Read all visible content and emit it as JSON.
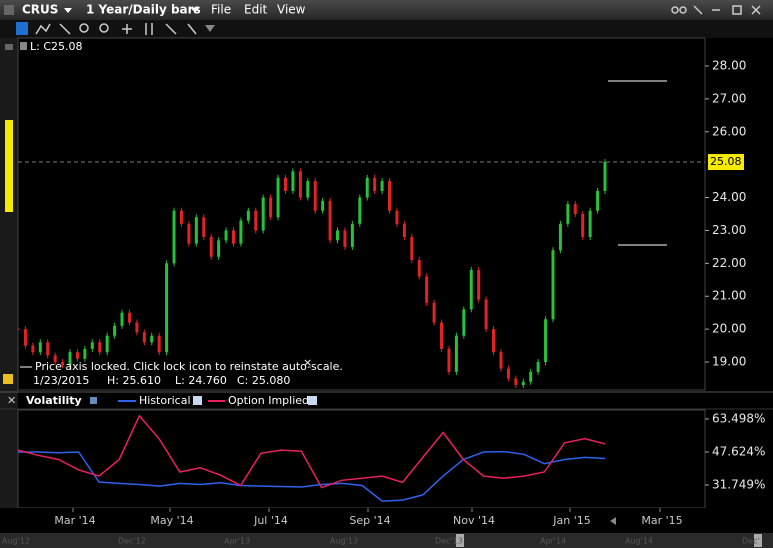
{
  "toolbar": {
    "symbol": "CRUS",
    "period": "1 Year/Daily bars",
    "menus": [
      "File",
      "Edit",
      "View"
    ]
  },
  "chart_data": [
    {
      "type": "candlestick",
      "legend_label": "L: C25.08",
      "values": [
        20.0,
        19.5,
        19.3,
        19.6,
        19.2,
        19.0,
        18.9,
        19.3,
        19.1,
        19.4,
        19.6,
        19.3,
        19.8,
        20.1,
        20.5,
        20.2,
        19.9,
        19.6,
        19.8,
        19.3,
        22.0,
        23.6,
        23.2,
        22.6,
        23.4,
        22.8,
        22.2,
        22.7,
        23.0,
        22.6,
        23.3,
        23.6,
        23.0,
        24.0,
        23.4,
        24.6,
        24.2,
        24.8,
        24.0,
        24.5,
        23.6,
        23.9,
        22.7,
        23.0,
        22.5,
        23.2,
        24.0,
        24.6,
        24.2,
        24.5,
        23.6,
        23.2,
        22.8,
        22.1,
        21.6,
        20.8,
        20.2,
        19.4,
        18.7,
        19.8,
        20.6,
        21.8,
        20.9,
        20.0,
        19.3,
        18.8,
        18.5,
        18.3,
        18.4,
        18.7,
        19.0,
        20.3,
        22.4,
        23.2,
        23.8,
        23.5,
        22.8,
        23.6,
        24.2,
        25.08
      ],
      "color_up": "#27c23a",
      "color_down": "#e02424",
      "ylim": [
        18.15,
        28.85
      ],
      "yticks": [
        {
          "value": 19,
          "label": "19.00"
        },
        {
          "value": 20,
          "label": "20.00"
        },
        {
          "value": 21,
          "label": "21.00"
        },
        {
          "value": 22,
          "label": "22.00"
        },
        {
          "value": 23,
          "label": "23.00"
        },
        {
          "value": 24,
          "label": "24.00"
        },
        {
          "value": 26,
          "label": "26.00"
        },
        {
          "value": 27,
          "label": "27.00"
        },
        {
          "value": 28,
          "label": "28.00"
        }
      ],
      "last_price": 25.08,
      "notice": "Price axis locked. Click lock icon to reinstate auto-scale.",
      "info": [
        "1/23/2015",
        "H: 25.610",
        "L: 24.760",
        "C: 25.080"
      ]
    },
    {
      "type": "line",
      "title": "Volatility",
      "series": [
        {
          "name": "Historical",
          "color": "#2f62ea",
          "values": [
            47.6,
            47.6,
            47.2,
            47.6,
            33.2,
            32.5,
            32.0,
            31.2,
            32.5,
            32.0,
            32.8,
            31.5,
            31.2,
            31.0,
            30.8,
            32.0,
            32.5,
            31.5,
            24.0,
            24.5,
            27.0,
            36.0,
            44.0,
            47.6,
            47.8,
            46.5,
            42.0,
            44.0,
            45.0,
            44.5
          ]
        },
        {
          "name": "Option Implied",
          "color": "#e8205c",
          "values": [
            48.5,
            46.0,
            44.0,
            39.0,
            36.0,
            44.0,
            65.0,
            53.5,
            38.0,
            40.0,
            36.5,
            31.5,
            47.0,
            48.5,
            48.0,
            30.5,
            34.0,
            35.0,
            36.0,
            33.0,
            45.0,
            57.0,
            44.0,
            36.0,
            35.0,
            36.0,
            38.0,
            52.0,
            54.0,
            51.5
          ]
        }
      ],
      "ylim": [
        20.68,
        67.8
      ],
      "yticks": [
        {
          "value": 31.749,
          "label": "31.749%"
        },
        {
          "value": 47.624,
          "label": "47.624%"
        },
        {
          "value": 63.498,
          "label": "63.498%"
        }
      ],
      "x_tick_labels": [
        "Mar '14",
        "May '14",
        "Jul '14",
        "Sep '14",
        "Nov '14",
        "Jan '15",
        "Mar '15"
      ]
    }
  ],
  "navigator": {
    "labels": [
      "Aug'12",
      "Dec'12",
      "Apr'13",
      "Aug'13",
      "Dec'13",
      "Apr'14",
      "Aug'14",
      "Dec'"
    ]
  }
}
